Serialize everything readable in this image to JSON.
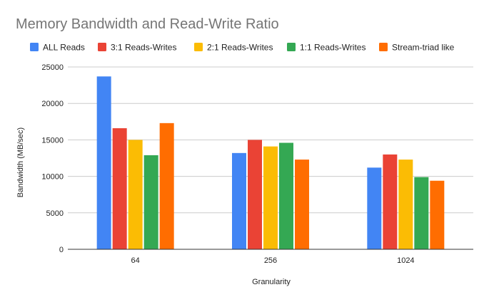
{
  "chart_data": {
    "type": "bar",
    "title": "Memory Bandwidth and Read-Write Ratio",
    "xlabel": "Granularity",
    "ylabel": "Bandwidth (MB/sec)",
    "categories": [
      "64",
      "256",
      "1024"
    ],
    "yticks": [
      "0",
      "5000",
      "10000",
      "15000",
      "20000",
      "25000"
    ],
    "ylim": [
      0,
      25000
    ],
    "grid": true,
    "legend_position": "top",
    "series": [
      {
        "name": "ALL Reads",
        "color": "#4285F4",
        "values": [
          23700,
          13200,
          11200
        ]
      },
      {
        "name": "3:1 Reads-Writes",
        "color": "#EA4335",
        "values": [
          16600,
          15000,
          13000
        ]
      },
      {
        "name": "2:1 Reads-Writes",
        "color": "#FBBC04",
        "values": [
          15000,
          14100,
          12300
        ]
      },
      {
        "name": "1:1 Reads-Writes",
        "color": "#34A853",
        "values": [
          12900,
          14600,
          9900
        ]
      },
      {
        "name": "Stream-triad like",
        "color": "#FF6D01",
        "values": [
          17300,
          12300,
          9400
        ]
      }
    ]
  }
}
